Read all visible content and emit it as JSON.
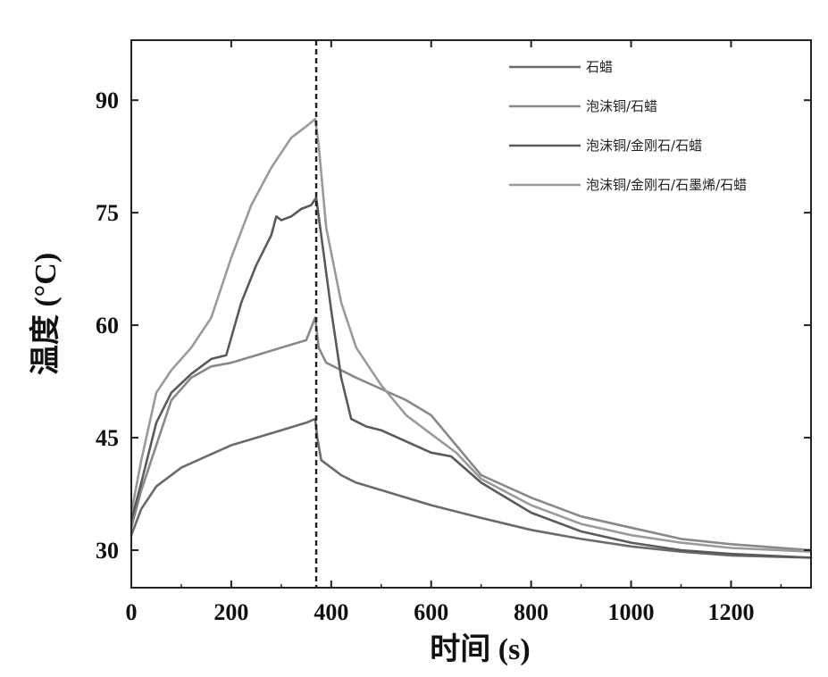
{
  "chart_data": {
    "type": "line",
    "title": "",
    "xlabel": "时间 (s)",
    "ylabel": "温度 (°C)",
    "xlim": [
      0,
      1360
    ],
    "ylim": [
      25,
      98
    ],
    "x_ticks": [
      0,
      200,
      400,
      600,
      800,
      1000,
      1200
    ],
    "x_tick_labels": [
      "0",
      "200",
      "400",
      "600",
      "800",
      "1000",
      "1200"
    ],
    "y_ticks": [
      30,
      45,
      60,
      75,
      90
    ],
    "y_tick_labels": [
      "30",
      "45",
      "60",
      "75",
      "90"
    ],
    "grid": false,
    "legend_position": "top-right",
    "vline_x": 370,
    "series": [
      {
        "name": "石蜡",
        "color": "#6a6a6a",
        "points": [
          [
            0,
            32
          ],
          [
            20,
            35.5
          ],
          [
            50,
            38.5
          ],
          [
            100,
            41
          ],
          [
            150,
            42.5
          ],
          [
            200,
            44
          ],
          [
            250,
            45
          ],
          [
            300,
            46
          ],
          [
            350,
            47
          ],
          [
            368,
            47.5
          ],
          [
            372,
            45
          ],
          [
            380,
            42
          ],
          [
            420,
            40
          ],
          [
            450,
            39
          ],
          [
            500,
            38
          ],
          [
            600,
            36
          ],
          [
            700,
            34.3
          ],
          [
            800,
            32.7
          ],
          [
            900,
            31.5
          ],
          [
            1000,
            30.5
          ],
          [
            1100,
            29.8
          ],
          [
            1200,
            29.3
          ],
          [
            1360,
            29
          ]
        ]
      },
      {
        "name": "泡沫铜/石蜡",
        "color": "#888888",
        "points": [
          [
            0,
            33
          ],
          [
            20,
            38
          ],
          [
            50,
            44
          ],
          [
            80,
            50
          ],
          [
            120,
            53
          ],
          [
            160,
            54.5
          ],
          [
            200,
            55
          ],
          [
            250,
            56
          ],
          [
            300,
            57
          ],
          [
            350,
            58
          ],
          [
            368,
            61
          ],
          [
            375,
            57
          ],
          [
            390,
            55
          ],
          [
            450,
            53
          ],
          [
            500,
            51.5
          ],
          [
            550,
            50
          ],
          [
            600,
            48
          ],
          [
            650,
            44
          ],
          [
            700,
            40
          ],
          [
            800,
            37
          ],
          [
            900,
            34.5
          ],
          [
            1000,
            33
          ],
          [
            1100,
            31.5
          ],
          [
            1200,
            30.8
          ],
          [
            1360,
            30
          ]
        ]
      },
      {
        "name": "泡沫铜/金刚石/石蜡",
        "color": "#5a5a5a",
        "points": [
          [
            0,
            34
          ],
          [
            20,
            39
          ],
          [
            50,
            47
          ],
          [
            80,
            51
          ],
          [
            120,
            53.5
          ],
          [
            160,
            55.5
          ],
          [
            190,
            56
          ],
          [
            220,
            63
          ],
          [
            250,
            68
          ],
          [
            280,
            72
          ],
          [
            290,
            74.5
          ],
          [
            300,
            74
          ],
          [
            320,
            74.5
          ],
          [
            340,
            75.5
          ],
          [
            360,
            76
          ],
          [
            370,
            77
          ],
          [
            380,
            72
          ],
          [
            400,
            62
          ],
          [
            420,
            53
          ],
          [
            440,
            47.5
          ],
          [
            470,
            46.5
          ],
          [
            500,
            46
          ],
          [
            550,
            44.5
          ],
          [
            600,
            43
          ],
          [
            640,
            42.5
          ],
          [
            700,
            39
          ],
          [
            800,
            35
          ],
          [
            900,
            32.5
          ],
          [
            1000,
            31
          ],
          [
            1100,
            30
          ],
          [
            1200,
            29.5
          ],
          [
            1360,
            29
          ]
        ]
      },
      {
        "name": "泡沫铜/金刚石/石墨烯/石蜡",
        "color": "#9a9a9a",
        "points": [
          [
            0,
            35
          ],
          [
            20,
            42
          ],
          [
            50,
            51
          ],
          [
            80,
            54
          ],
          [
            120,
            57
          ],
          [
            160,
            61
          ],
          [
            200,
            69
          ],
          [
            240,
            76
          ],
          [
            280,
            81
          ],
          [
            320,
            85
          ],
          [
            350,
            86.5
          ],
          [
            368,
            87.5
          ],
          [
            375,
            84
          ],
          [
            390,
            73
          ],
          [
            420,
            63
          ],
          [
            450,
            57
          ],
          [
            500,
            52
          ],
          [
            550,
            48
          ],
          [
            600,
            45.5
          ],
          [
            650,
            43
          ],
          [
            700,
            39.5
          ],
          [
            800,
            36
          ],
          [
            900,
            33.5
          ],
          [
            1000,
            32
          ],
          [
            1100,
            31
          ],
          [
            1200,
            30.3
          ],
          [
            1360,
            29.8
          ]
        ]
      }
    ]
  }
}
